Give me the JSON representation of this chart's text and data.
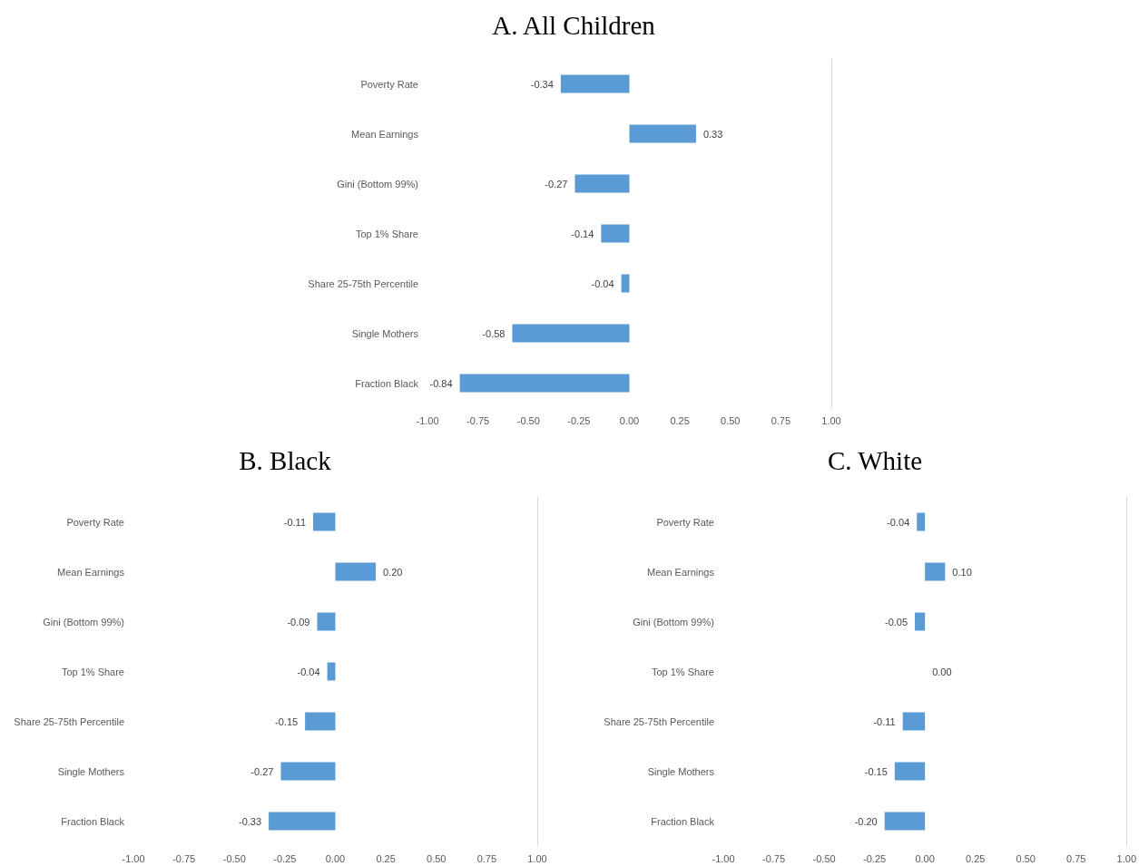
{
  "chart_data": [
    {
      "type": "bar",
      "title": "A. All Children",
      "orientation": "horizontal",
      "categories": [
        "Poverty Rate",
        "Mean Earnings",
        "Gini (Bottom 99%)",
        "Top 1% Share",
        "Share 25-75th Percentile",
        "Single Mothers",
        "Fraction Black"
      ],
      "values": [
        -0.34,
        0.33,
        -0.27,
        -0.14,
        -0.04,
        -0.58,
        -0.84
      ],
      "value_labels": [
        "-0.34",
        "0.33",
        "-0.27",
        "-0.14",
        "-0.04",
        "-0.58",
        "-0.84"
      ],
      "color": "#5b9bd5",
      "xlim": [
        -1,
        1
      ],
      "xticks": [
        {
          "value": -1,
          "label": "-1.00"
        },
        {
          "value": -0.75,
          "label": "-0.75"
        },
        {
          "value": -0.5,
          "label": "-0.50"
        },
        {
          "value": -0.25,
          "label": "-0.25"
        },
        {
          "value": 0,
          "label": "0.00"
        },
        {
          "value": 0.25,
          "label": "0.25"
        },
        {
          "value": 0.5,
          "label": "0.50"
        },
        {
          "value": 0.75,
          "label": "0.75"
        },
        {
          "value": 1,
          "label": "1.00"
        }
      ],
      "grid": false
    },
    {
      "type": "bar",
      "title": "B. Black",
      "orientation": "horizontal",
      "categories": [
        "Poverty Rate",
        "Mean Earnings",
        "Gini (Bottom 99%)",
        "Top 1% Share",
        "Share 25-75th Percentile",
        "Single Mothers",
        "Fraction Black"
      ],
      "values": [
        -0.11,
        0.2,
        -0.09,
        -0.04,
        -0.15,
        -0.27,
        -0.33
      ],
      "value_labels": [
        "-0.11",
        "0.20",
        "-0.09",
        "-0.04",
        "-0.15",
        "-0.27",
        "-0.33"
      ],
      "color": "#5b9bd5",
      "xlim": [
        -1,
        1
      ],
      "xticks": [
        {
          "value": -1,
          "label": "-1.00"
        },
        {
          "value": -0.75,
          "label": "-0.75"
        },
        {
          "value": -0.5,
          "label": "-0.50"
        },
        {
          "value": -0.25,
          "label": "-0.25"
        },
        {
          "value": 0,
          "label": "0.00"
        },
        {
          "value": 0.25,
          "label": "0.25"
        },
        {
          "value": 0.5,
          "label": "0.50"
        },
        {
          "value": 0.75,
          "label": "0.75"
        },
        {
          "value": 1,
          "label": "1.00"
        }
      ],
      "grid": false
    },
    {
      "type": "bar",
      "title": "C. White",
      "orientation": "horizontal",
      "categories": [
        "Poverty Rate",
        "Mean Earnings",
        "Gini (Bottom 99%)",
        "Top 1% Share",
        "Share 25-75th Percentile",
        "Single Mothers",
        "Fraction Black"
      ],
      "values": [
        -0.04,
        0.1,
        -0.05,
        0.0,
        -0.11,
        -0.15,
        -0.2
      ],
      "value_labels": [
        "-0.04",
        "0.10",
        "-0.05",
        "0.00",
        "-0.11",
        "-0.15",
        "-0.20"
      ],
      "color": "#5b9bd5",
      "xlim": [
        -1,
        1
      ],
      "xticks": [
        {
          "value": -1,
          "label": "-1.00"
        },
        {
          "value": -0.75,
          "label": "-0.75"
        },
        {
          "value": -0.5,
          "label": "-0.50"
        },
        {
          "value": -0.25,
          "label": "-0.25"
        },
        {
          "value": 0,
          "label": "0.00"
        },
        {
          "value": 0.25,
          "label": "0.25"
        },
        {
          "value": 0.5,
          "label": "0.50"
        },
        {
          "value": 0.75,
          "label": "0.75"
        },
        {
          "value": 1,
          "label": "1.00"
        }
      ],
      "grid": false
    }
  ]
}
